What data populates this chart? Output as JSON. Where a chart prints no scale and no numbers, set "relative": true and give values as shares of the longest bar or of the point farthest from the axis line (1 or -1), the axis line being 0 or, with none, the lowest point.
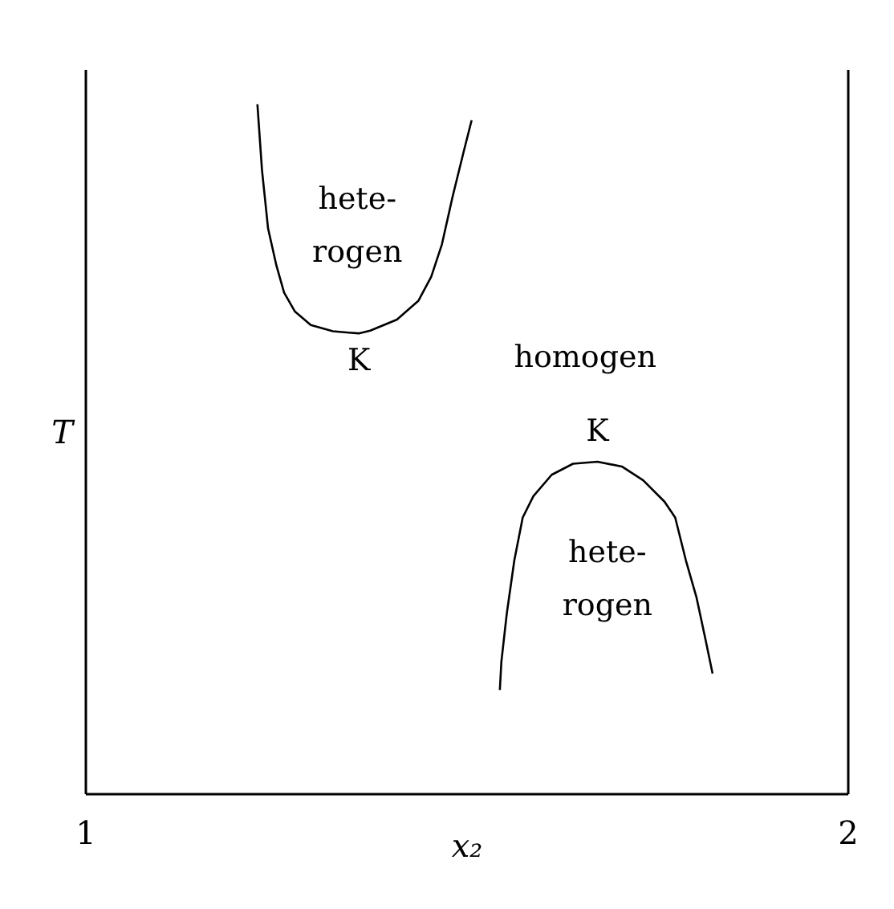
{
  "chart_data": {
    "type": "line",
    "relative": true,
    "xlabel": "x₂",
    "ylabel": "T",
    "xlim": [
      1,
      2
    ],
    "xticks": [
      1,
      2
    ],
    "series": [
      {
        "color": "#000000",
        "x": [
          1.225,
          1.231,
          1.239,
          1.25,
          1.26,
          1.274,
          1.295,
          1.324,
          1.345,
          1.358,
          1.373,
          1.408,
          1.436,
          1.453,
          1.467,
          1.481,
          1.495,
          1.506
        ],
        "values": [
          1.0,
          0.905,
          0.82,
          0.766,
          0.727,
          0.7,
          0.68,
          0.671,
          0.669,
          0.668,
          0.672,
          0.688,
          0.715,
          0.75,
          0.797,
          0.866,
          0.929,
          0.977
        ]
      },
      {
        "color": "#000000",
        "x": [
          1.543,
          1.545,
          1.552,
          1.562,
          1.573,
          1.587,
          1.611,
          1.639,
          1.671,
          1.703,
          1.731,
          1.759,
          1.773,
          1.787,
          1.801,
          1.813,
          1.822
        ],
        "values": [
          0.151,
          0.192,
          0.261,
          0.339,
          0.401,
          0.432,
          0.463,
          0.479,
          0.482,
          0.475,
          0.455,
          0.424,
          0.401,
          0.339,
          0.285,
          0.223,
          0.175
        ]
      }
    ],
    "annotations": [
      "hete-\nrogen",
      {
        "text": "K",
        "x": 1.358,
        "y": 0.668
      },
      "homogen",
      {
        "text": "K",
        "x": 1.671,
        "y": 0.482
      },
      "hete-\nrogen"
    ]
  }
}
